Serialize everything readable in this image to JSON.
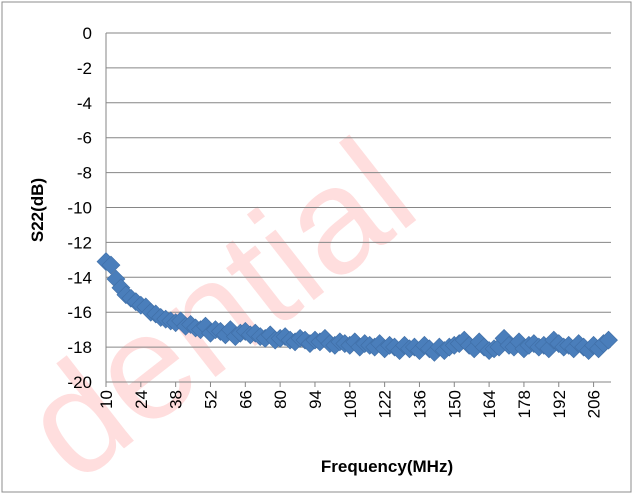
{
  "watermark": {
    "text": "dential",
    "color": "#ff0000"
  },
  "chart_data": {
    "type": "scatter",
    "xlabel": "Frequency(MHz)",
    "ylabel": "S22(dB)",
    "ylim": [
      -20,
      0
    ],
    "yticks": [
      0,
      -2,
      -4,
      -6,
      -8,
      -10,
      -12,
      -14,
      -16,
      -18,
      -20
    ],
    "xlim": [
      10,
      213
    ],
    "xticks": [
      10,
      24,
      38,
      52,
      66,
      80,
      94,
      108,
      122,
      136,
      150,
      164,
      178,
      192,
      206
    ],
    "grid": true,
    "legend": "none",
    "marker": "diamond",
    "marker_color": "#4a7ebb",
    "x": [
      10,
      12,
      14,
      16,
      18,
      20,
      22,
      24,
      26,
      28,
      30,
      32,
      34,
      36,
      38,
      40,
      42,
      44,
      46,
      48,
      50,
      52,
      54,
      56,
      58,
      60,
      62,
      64,
      66,
      68,
      70,
      72,
      74,
      76,
      78,
      80,
      82,
      84,
      86,
      88,
      90,
      92,
      94,
      96,
      98,
      100,
      102,
      104,
      106,
      108,
      110,
      112,
      114,
      116,
      118,
      120,
      122,
      124,
      126,
      128,
      130,
      132,
      134,
      136,
      138,
      140,
      142,
      144,
      146,
      148,
      150,
      152,
      154,
      156,
      158,
      160,
      162,
      164,
      166,
      168,
      170,
      172,
      174,
      176,
      178,
      180,
      182,
      184,
      186,
      188,
      190,
      192,
      194,
      196,
      198,
      200,
      202,
      204,
      206,
      208,
      210,
      212
    ],
    "y": [
      -13.1,
      -13.3,
      -14.1,
      -14.6,
      -15.0,
      -15.2,
      -15.4,
      -15.6,
      -15.7,
      -16.0,
      -16.1,
      -16.3,
      -16.4,
      -16.5,
      -16.6,
      -16.5,
      -16.8,
      -16.7,
      -16.9,
      -17.0,
      -16.8,
      -17.2,
      -17.0,
      -17.1,
      -17.3,
      -17.0,
      -17.4,
      -17.2,
      -17.1,
      -17.3,
      -17.2,
      -17.4,
      -17.5,
      -17.3,
      -17.6,
      -17.5,
      -17.4,
      -17.6,
      -17.7,
      -17.5,
      -17.6,
      -17.8,
      -17.6,
      -17.7,
      -17.5,
      -17.8,
      -17.9,
      -17.7,
      -17.8,
      -17.9,
      -17.7,
      -18.0,
      -17.8,
      -17.9,
      -18.0,
      -17.8,
      -18.1,
      -17.9,
      -18.0,
      -18.2,
      -17.9,
      -18.1,
      -18.0,
      -18.2,
      -17.9,
      -18.1,
      -18.3,
      -18.0,
      -18.2,
      -18.0,
      -17.9,
      -17.8,
      -17.6,
      -17.9,
      -18.1,
      -17.7,
      -18.0,
      -18.2,
      -18.1,
      -18.0,
      -17.5,
      -17.9,
      -18.0,
      -17.7,
      -18.1,
      -17.9,
      -17.8,
      -18.0,
      -17.9,
      -18.1,
      -17.6,
      -17.8,
      -18.0,
      -17.9,
      -18.1,
      -17.8,
      -18.0,
      -18.2,
      -17.9,
      -18.1,
      -17.8,
      -17.6
    ]
  }
}
